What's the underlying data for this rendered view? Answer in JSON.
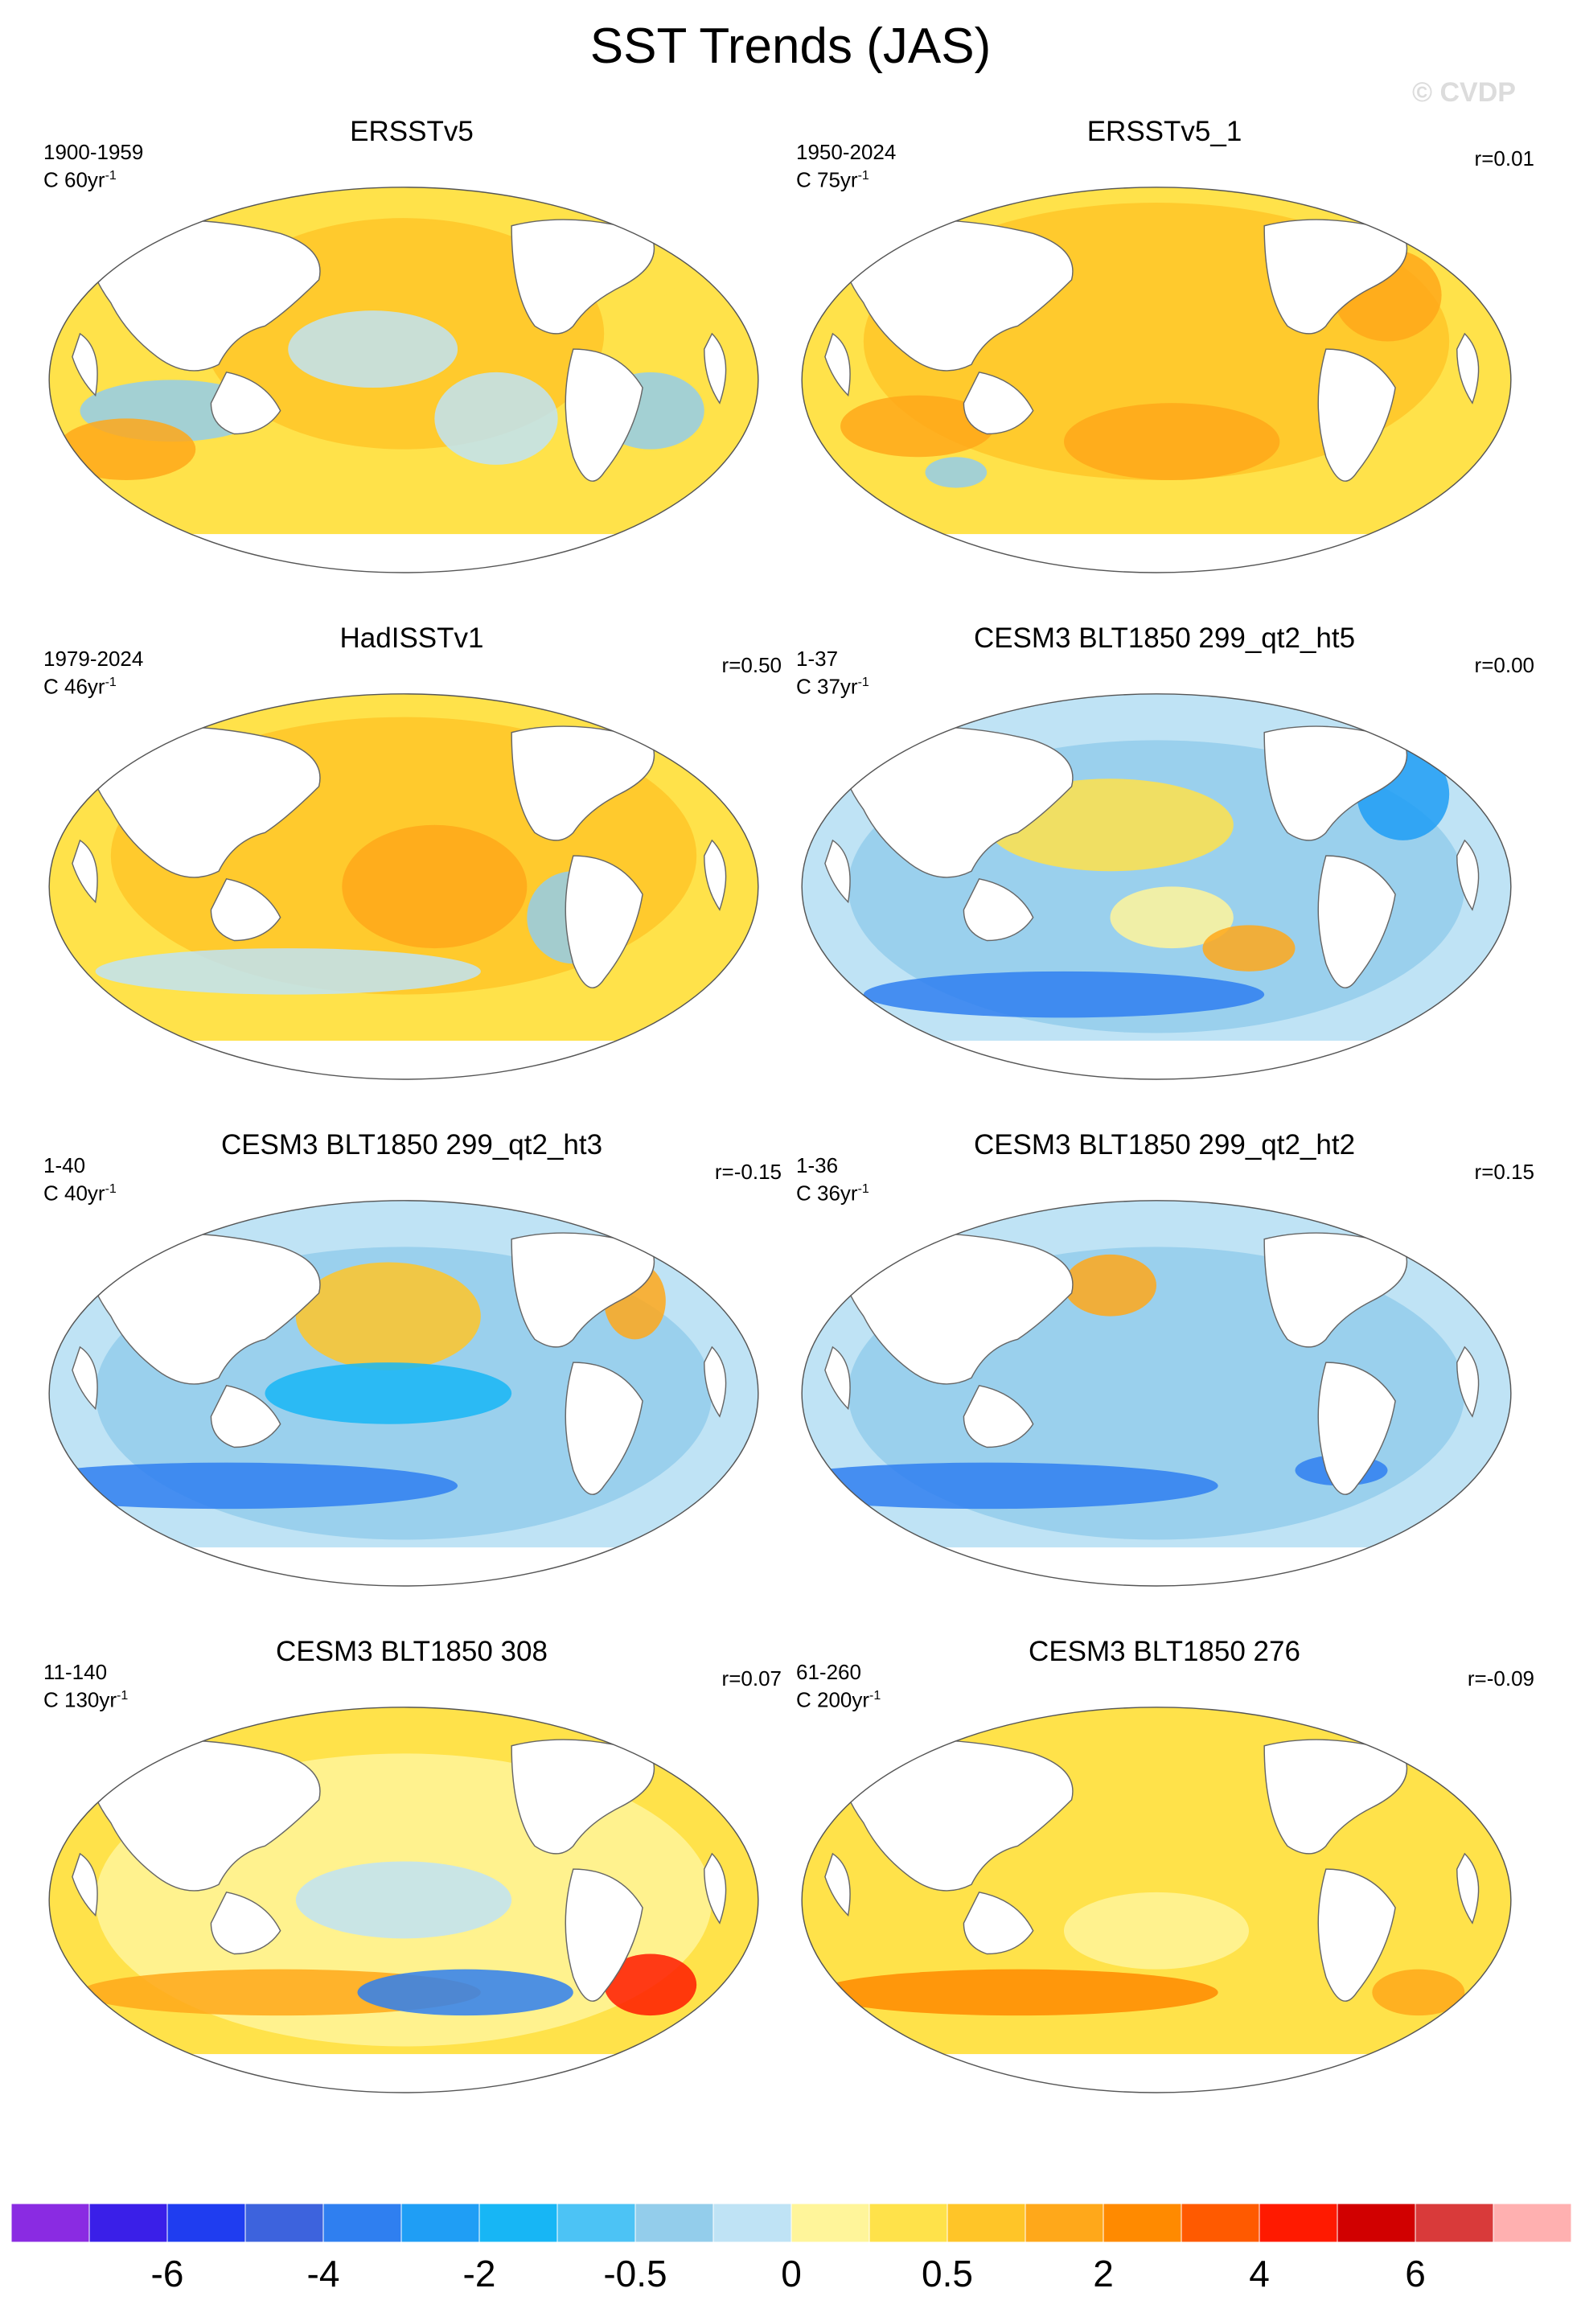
{
  "title": "SST Trends (JAS)",
  "watermark": "© CVDP",
  "panels": [
    {
      "title": "ERSSTv5",
      "period": "1900-1959",
      "ci_text": "C 60yr",
      "ci_sup": "-1",
      "corr": ""
    },
    {
      "title": "ERSSTv5_1",
      "period": "1950-2024",
      "ci_text": "C 75yr",
      "ci_sup": "-1",
      "corr": "r=0.01"
    },
    {
      "title": "HadISSTv1",
      "period": "1979-2024",
      "ci_text": "C 46yr",
      "ci_sup": "-1",
      "corr": "r=0.50"
    },
    {
      "title": "CESM3 BLT1850 299_qt2_ht5",
      "period": "1-37",
      "ci_text": "C 37yr",
      "ci_sup": "-1",
      "corr": "r=0.00"
    },
    {
      "title": "CESM3 BLT1850 299_qt2_ht3",
      "period": "1-40",
      "ci_text": "C 40yr",
      "ci_sup": "-1",
      "corr": "r=-0.15"
    },
    {
      "title": "CESM3 BLT1850 299_qt2_ht2",
      "period": "1-36",
      "ci_text": "C 36yr",
      "ci_sup": "-1",
      "corr": "r=0.15"
    },
    {
      "title": "CESM3 BLT1850 308",
      "period": "11-140",
      "ci_text": "C 130yr",
      "ci_sup": "-1",
      "corr": "r=0.07"
    },
    {
      "title": "CESM3 BLT1850 276",
      "period": "61-260",
      "ci_text": "C 200yr",
      "ci_sup": "-1",
      "corr": "r=-0.09"
    }
  ],
  "colorbar": {
    "colors": [
      "#8a2be2",
      "#3a1fe8",
      "#1f3df0",
      "#3d63dd",
      "#2f7ff0",
      "#1f9ef5",
      "#17b6f5",
      "#4cc3f5",
      "#93cdeb",
      "#bfe3f5",
      "#fff59a",
      "#ffe24a",
      "#ffc528",
      "#ffa81a",
      "#ff8a00",
      "#ff5a00",
      "#ff1a00",
      "#d10000",
      "#d93a3a",
      "#ffb0b0"
    ],
    "labels": [
      "-6",
      "-4",
      "-2",
      "-0.5",
      "0",
      "0.5",
      "2",
      "4",
      "6"
    ]
  },
  "palette": {
    "ocean_default": "#ffe24a",
    "land": "#ffffff",
    "coast": "#666666"
  }
}
